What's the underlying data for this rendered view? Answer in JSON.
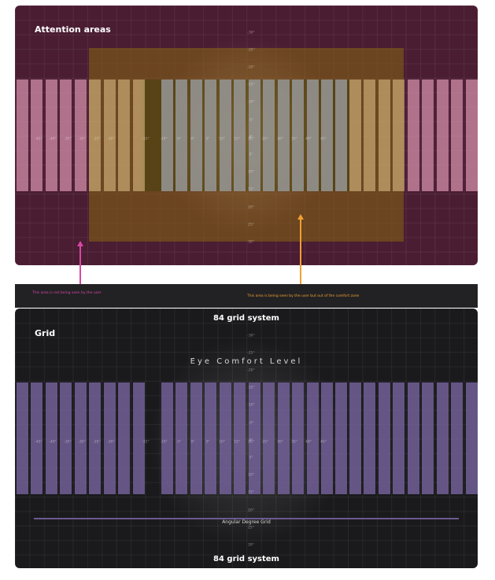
{
  "attention_panel": {
    "title": "Attention areas",
    "y_ticks": [
      "-30°",
      "-25°",
      "-20°",
      "-15°",
      "-10°",
      "-5°",
      "0°",
      "5°",
      "10°",
      "15°",
      "20°",
      "25°",
      "30°"
    ],
    "x_ticks": [
      "-45°",
      "-40°",
      "-35°",
      "-30°",
      "-25°",
      "-20°",
      "-15°",
      "-10°",
      "-5°",
      "0°",
      "5°",
      "10°",
      "15°",
      "20°",
      "25°",
      "30°",
      "35°",
      "40°",
      "45°"
    ],
    "colors": {
      "background": "#4a1d33",
      "outer_bars": "#c98a9e",
      "comfort_zone": "#825f14",
      "center": "#1a1a1a",
      "center_bars": "#8a8a8a"
    }
  },
  "captions": {
    "not_seen": "This area is not being seen by the user",
    "not_seen_color": "#d946a8",
    "out_of_comfort": "This area is being seen by the user but out of the comfort zone",
    "out_of_comfort_color": "#f0a030"
  },
  "grid_panel": {
    "title": "Grid",
    "header": "84 grid system",
    "footer": "84 grid system",
    "eye_label": "Eye Comfort Level",
    "angular_label": "Angular Degree Grid",
    "y_ticks": [
      "-30°",
      "-25°",
      "-20°",
      "-15°",
      "-10°",
      "-5°",
      "0°",
      "5°",
      "10°",
      "15°",
      "20°",
      "25°",
      "30°"
    ],
    "x_ticks": [
      "-45°",
      "-40°",
      "-35°",
      "-30°",
      "-25°",
      "-20°",
      "-15°",
      "-10°",
      "-5°",
      "0°",
      "5°",
      "10°",
      "15°",
      "20°",
      "25°",
      "30°",
      "35°",
      "40°",
      "45°"
    ],
    "colors": {
      "background": "#1a1a1c",
      "bars": "#6b5a8e",
      "angular_line": "#6b5a8e"
    }
  }
}
